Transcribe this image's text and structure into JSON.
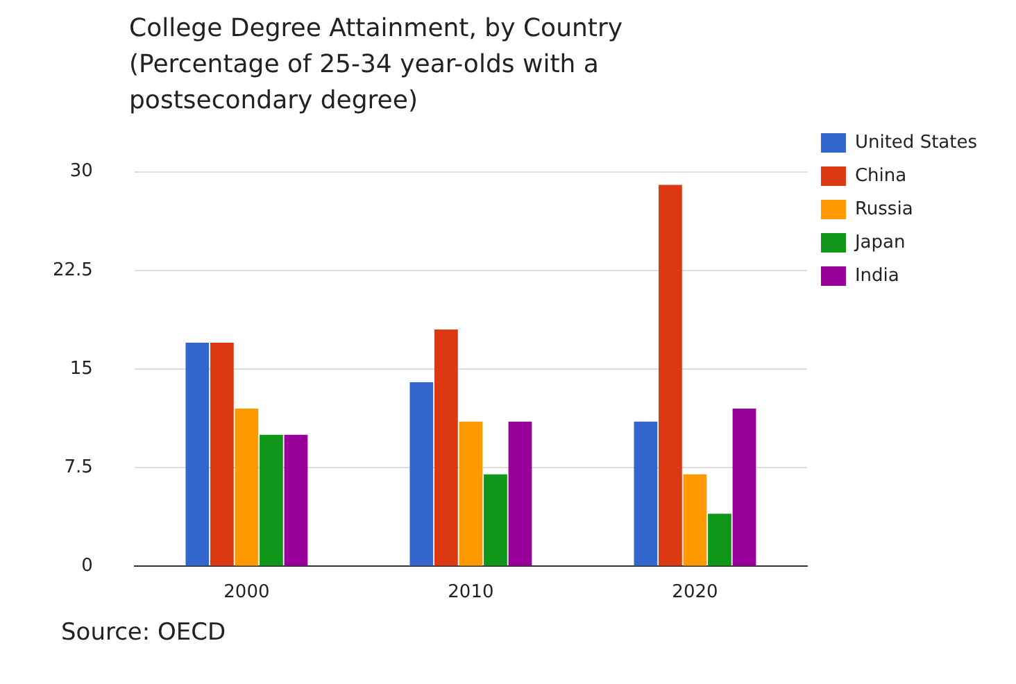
{
  "chart_data": {
    "type": "bar",
    "title": "College Degree Attainment, by Country",
    "subtitle": "(Percentage of 25-34 year-olds with a postsecondary degree)",
    "categories": [
      "2000",
      "2010",
      "2020"
    ],
    "series": [
      {
        "name": "United States",
        "color": "#3366cc",
        "values": [
          17,
          14,
          11
        ]
      },
      {
        "name": "China",
        "color": "#dc3912",
        "values": [
          17,
          18,
          29
        ]
      },
      {
        "name": "Russia",
        "color": "#ff9900",
        "values": [
          12,
          11,
          7
        ]
      },
      {
        "name": "Japan",
        "color": "#109618",
        "values": [
          10,
          7,
          4
        ]
      },
      {
        "name": "India",
        "color": "#990099",
        "values": [
          10,
          11,
          12
        ]
      }
    ],
    "ylim": [
      0,
      30
    ],
    "yticks": [
      0,
      7.5,
      15,
      22.5,
      30
    ],
    "grid": "y",
    "legend": "right",
    "annotations": [
      "Source: OECD"
    ]
  }
}
